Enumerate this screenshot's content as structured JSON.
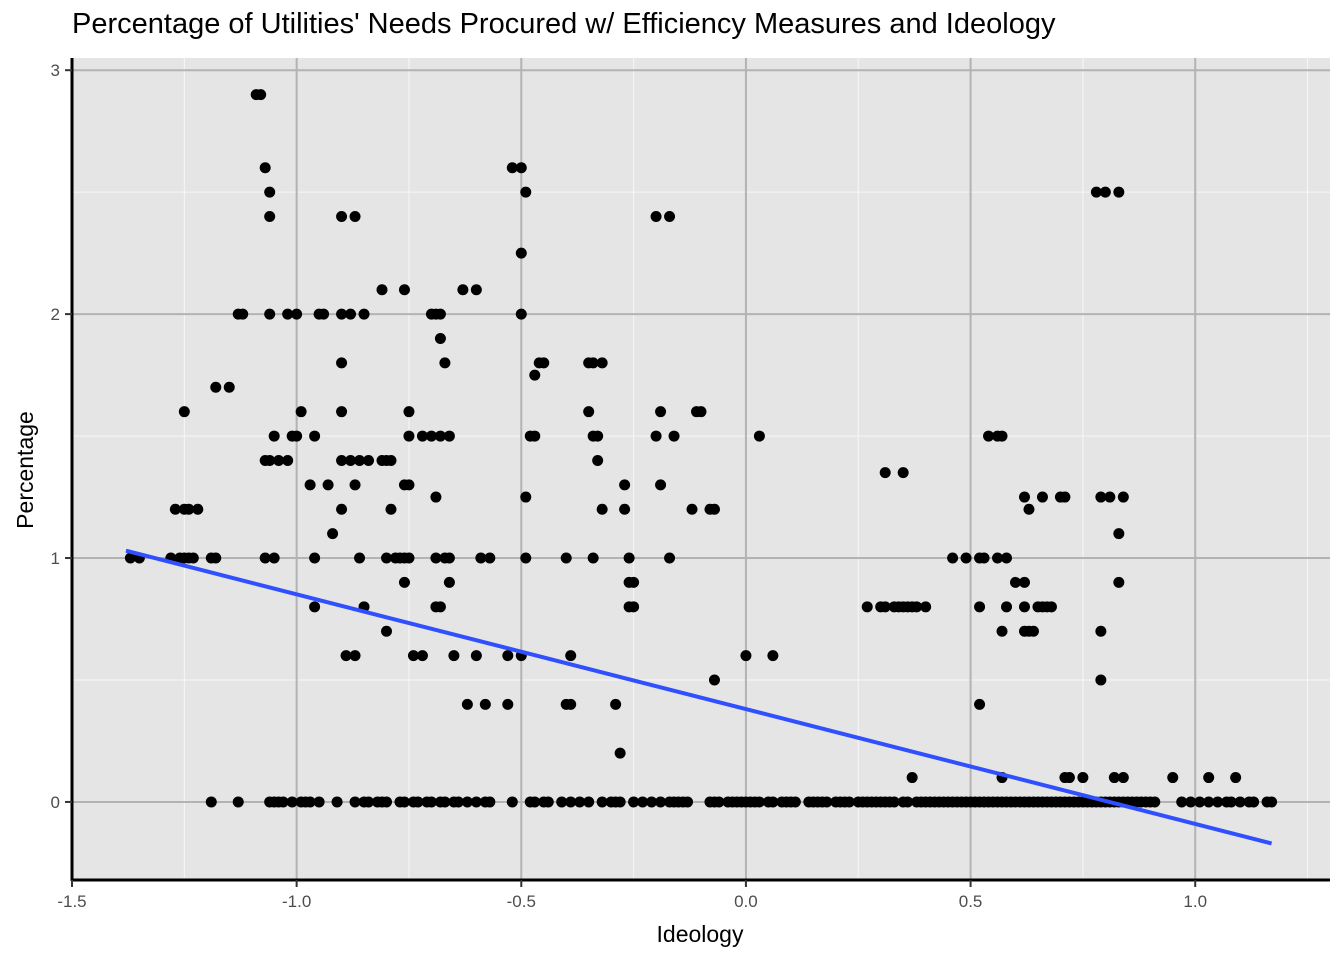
{
  "chart_data": {
    "type": "scatter",
    "title": "Percentage of Utilities' Needs Procured w/ Efficiency Measures and Ideology",
    "xlabel": "Ideology",
    "ylabel": "Percentage",
    "xlim": [
      -1.5,
      1.3
    ],
    "ylim": [
      -0.32,
      3.05
    ],
    "x_ticks": [
      -1.5,
      -1.0,
      -0.5,
      0.0,
      0.5,
      1.0
    ],
    "x_tick_labels": [
      "-1.5",
      "-1.0",
      "-0.5",
      "0.0",
      "0.5",
      "1.0"
    ],
    "y_ticks": [
      0,
      1,
      2,
      3
    ],
    "y_tick_labels": [
      "0",
      "1",
      "2",
      "3"
    ],
    "grid": true,
    "colors": {
      "panel": "#e5e5e5",
      "grid": "#b3b3b3",
      "points": "#000000",
      "trend": "#3050ff"
    },
    "trend_line": {
      "x": [
        -1.38,
        1.17
      ],
      "y": [
        1.03,
        -0.17
      ]
    },
    "points": [
      [
        -1.09,
        2.9
      ],
      [
        -1.08,
        2.9
      ],
      [
        -1.07,
        2.6
      ],
      [
        -1.06,
        2.5
      ],
      [
        -1.06,
        2.4
      ],
      [
        -0.52,
        2.6
      ],
      [
        -0.5,
        2.6
      ],
      [
        -0.49,
        2.5
      ],
      [
        -0.5,
        2.25
      ],
      [
        -0.9,
        2.4
      ],
      [
        -0.87,
        2.4
      ],
      [
        -0.2,
        2.4
      ],
      [
        -0.17,
        2.4
      ],
      [
        0.78,
        2.5
      ],
      [
        0.8,
        2.5
      ],
      [
        0.83,
        2.5
      ],
      [
        -1.13,
        2.0
      ],
      [
        -1.12,
        2.0
      ],
      [
        -1.06,
        2.0
      ],
      [
        -1.02,
        2.0
      ],
      [
        -1.0,
        2.0
      ],
      [
        -0.95,
        2.0
      ],
      [
        -0.94,
        2.0
      ],
      [
        -0.9,
        2.0
      ],
      [
        -0.88,
        2.0
      ],
      [
        -0.85,
        2.0
      ],
      [
        -0.7,
        2.0
      ],
      [
        -0.69,
        2.0
      ],
      [
        -0.68,
        2.0
      ],
      [
        -0.5,
        2.0
      ],
      [
        -0.81,
        2.1
      ],
      [
        -0.76,
        2.1
      ],
      [
        -0.63,
        2.1
      ],
      [
        -0.6,
        2.1
      ],
      [
        -0.68,
        1.9
      ],
      [
        -0.9,
        1.8
      ],
      [
        -0.67,
        1.8
      ],
      [
        -0.46,
        1.8
      ],
      [
        -0.45,
        1.8
      ],
      [
        -0.47,
        1.75
      ],
      [
        -0.35,
        1.8
      ],
      [
        -0.34,
        1.8
      ],
      [
        -0.32,
        1.8
      ],
      [
        -1.18,
        1.7
      ],
      [
        -1.15,
        1.7
      ],
      [
        -1.25,
        1.6
      ],
      [
        -0.99,
        1.6
      ],
      [
        -0.9,
        1.6
      ],
      [
        -0.75,
        1.6
      ],
      [
        -0.35,
        1.6
      ],
      [
        -0.19,
        1.6
      ],
      [
        -0.11,
        1.6
      ],
      [
        -0.1,
        1.6
      ],
      [
        -1.05,
        1.5
      ],
      [
        -1.01,
        1.5
      ],
      [
        -1.0,
        1.5
      ],
      [
        -0.96,
        1.5
      ],
      [
        -0.75,
        1.5
      ],
      [
        -0.72,
        1.5
      ],
      [
        -0.7,
        1.5
      ],
      [
        -0.68,
        1.5
      ],
      [
        -0.66,
        1.5
      ],
      [
        -0.48,
        1.5
      ],
      [
        -0.47,
        1.5
      ],
      [
        -0.34,
        1.5
      ],
      [
        -0.33,
        1.5
      ],
      [
        -0.2,
        1.5
      ],
      [
        -0.16,
        1.5
      ],
      [
        0.03,
        1.5
      ],
      [
        0.54,
        1.5
      ],
      [
        0.56,
        1.5
      ],
      [
        0.57,
        1.5
      ],
      [
        -1.07,
        1.4
      ],
      [
        -1.06,
        1.4
      ],
      [
        -1.04,
        1.4
      ],
      [
        -1.02,
        1.4
      ],
      [
        -0.9,
        1.4
      ],
      [
        -0.88,
        1.4
      ],
      [
        -0.86,
        1.4
      ],
      [
        -0.84,
        1.4
      ],
      [
        -0.81,
        1.4
      ],
      [
        -0.8,
        1.4
      ],
      [
        -0.79,
        1.4
      ],
      [
        -0.33,
        1.4
      ],
      [
        0.31,
        1.35
      ],
      [
        0.35,
        1.35
      ],
      [
        -0.97,
        1.3
      ],
      [
        -0.93,
        1.3
      ],
      [
        -0.87,
        1.3
      ],
      [
        -0.76,
        1.3
      ],
      [
        -0.75,
        1.3
      ],
      [
        -0.27,
        1.3
      ],
      [
        -0.19,
        1.3
      ],
      [
        -0.69,
        1.25
      ],
      [
        -0.49,
        1.25
      ],
      [
        0.62,
        1.25
      ],
      [
        0.66,
        1.25
      ],
      [
        0.7,
        1.25
      ],
      [
        0.71,
        1.25
      ],
      [
        0.79,
        1.25
      ],
      [
        0.81,
        1.25
      ],
      [
        0.84,
        1.25
      ],
      [
        -1.27,
        1.2
      ],
      [
        -1.25,
        1.2
      ],
      [
        -1.24,
        1.2
      ],
      [
        -1.22,
        1.2
      ],
      [
        -0.9,
        1.2
      ],
      [
        -0.79,
        1.2
      ],
      [
        -0.32,
        1.2
      ],
      [
        -0.27,
        1.2
      ],
      [
        -0.12,
        1.2
      ],
      [
        -0.08,
        1.2
      ],
      [
        -0.07,
        1.2
      ],
      [
        0.63,
        1.2
      ],
      [
        -0.92,
        1.1
      ],
      [
        0.83,
        1.1
      ],
      [
        -1.37,
        1.0
      ],
      [
        -1.35,
        1.0
      ],
      [
        -1.28,
        1.0
      ],
      [
        -1.26,
        1.0
      ],
      [
        -1.25,
        1.0
      ],
      [
        -1.24,
        1.0
      ],
      [
        -1.23,
        1.0
      ],
      [
        -1.19,
        1.0
      ],
      [
        -1.18,
        1.0
      ],
      [
        -1.07,
        1.0
      ],
      [
        -1.05,
        1.0
      ],
      [
        -0.96,
        1.0
      ],
      [
        -0.86,
        1.0
      ],
      [
        -0.8,
        1.0
      ],
      [
        -0.78,
        1.0
      ],
      [
        -0.77,
        1.0
      ],
      [
        -0.76,
        1.0
      ],
      [
        -0.75,
        1.0
      ],
      [
        -0.69,
        1.0
      ],
      [
        -0.67,
        1.0
      ],
      [
        -0.66,
        1.0
      ],
      [
        -0.59,
        1.0
      ],
      [
        -0.57,
        1.0
      ],
      [
        -0.49,
        1.0
      ],
      [
        -0.4,
        1.0
      ],
      [
        -0.34,
        1.0
      ],
      [
        -0.26,
        1.0
      ],
      [
        -0.17,
        1.0
      ],
      [
        0.46,
        1.0
      ],
      [
        0.49,
        1.0
      ],
      [
        0.52,
        1.0
      ],
      [
        0.53,
        1.0
      ],
      [
        0.56,
        1.0
      ],
      [
        0.58,
        1.0
      ],
      [
        -0.76,
        0.9
      ],
      [
        -0.66,
        0.9
      ],
      [
        -0.26,
        0.9
      ],
      [
        -0.25,
        0.9
      ],
      [
        0.6,
        0.9
      ],
      [
        0.62,
        0.9
      ],
      [
        0.83,
        0.9
      ],
      [
        -0.96,
        0.8
      ],
      [
        -0.85,
        0.8
      ],
      [
        -0.69,
        0.8
      ],
      [
        -0.68,
        0.8
      ],
      [
        -0.26,
        0.8
      ],
      [
        -0.25,
        0.8
      ],
      [
        0.27,
        0.8
      ],
      [
        0.3,
        0.8
      ],
      [
        0.31,
        0.8
      ],
      [
        0.33,
        0.8
      ],
      [
        0.34,
        0.8
      ],
      [
        0.35,
        0.8
      ],
      [
        0.36,
        0.8
      ],
      [
        0.37,
        0.8
      ],
      [
        0.38,
        0.8
      ],
      [
        0.4,
        0.8
      ],
      [
        0.52,
        0.8
      ],
      [
        0.58,
        0.8
      ],
      [
        0.62,
        0.8
      ],
      [
        0.65,
        0.8
      ],
      [
        0.66,
        0.8
      ],
      [
        0.67,
        0.8
      ],
      [
        0.68,
        0.8
      ],
      [
        -0.8,
        0.7
      ],
      [
        0.57,
        0.7
      ],
      [
        0.62,
        0.7
      ],
      [
        0.63,
        0.7
      ],
      [
        0.64,
        0.7
      ],
      [
        0.79,
        0.7
      ],
      [
        -0.89,
        0.6
      ],
      [
        -0.87,
        0.6
      ],
      [
        -0.74,
        0.6
      ],
      [
        -0.72,
        0.6
      ],
      [
        -0.65,
        0.6
      ],
      [
        -0.6,
        0.6
      ],
      [
        -0.53,
        0.6
      ],
      [
        -0.5,
        0.6
      ],
      [
        -0.39,
        0.6
      ],
      [
        0.0,
        0.6
      ],
      [
        0.06,
        0.6
      ],
      [
        -0.07,
        0.5
      ],
      [
        0.79,
        0.5
      ],
      [
        -0.62,
        0.4
      ],
      [
        -0.58,
        0.4
      ],
      [
        -0.53,
        0.4
      ],
      [
        -0.4,
        0.4
      ],
      [
        -0.39,
        0.4
      ],
      [
        -0.29,
        0.4
      ],
      [
        0.52,
        0.4
      ],
      [
        -0.28,
        0.2
      ],
      [
        0.37,
        0.1
      ],
      [
        0.57,
        0.1
      ],
      [
        0.71,
        0.1
      ],
      [
        0.72,
        0.1
      ],
      [
        0.75,
        0.1
      ],
      [
        0.82,
        0.1
      ],
      [
        0.84,
        0.1
      ],
      [
        0.95,
        0.1
      ],
      [
        1.03,
        0.1
      ],
      [
        1.09,
        0.1
      ],
      [
        -1.19,
        0
      ],
      [
        -1.13,
        0
      ],
      [
        -1.06,
        0
      ],
      [
        -1.05,
        0
      ],
      [
        -1.04,
        0
      ],
      [
        -1.03,
        0
      ],
      [
        -1.01,
        0
      ],
      [
        -0.99,
        0
      ],
      [
        -0.98,
        0
      ],
      [
        -0.97,
        0
      ],
      [
        -0.95,
        0
      ],
      [
        -0.91,
        0
      ],
      [
        -0.87,
        0
      ],
      [
        -0.85,
        0
      ],
      [
        -0.84,
        0
      ],
      [
        -0.82,
        0
      ],
      [
        -0.81,
        0
      ],
      [
        -0.8,
        0
      ],
      [
        -0.77,
        0
      ],
      [
        -0.76,
        0
      ],
      [
        -0.74,
        0
      ],
      [
        -0.73,
        0
      ],
      [
        -0.71,
        0
      ],
      [
        -0.7,
        0
      ],
      [
        -0.68,
        0
      ],
      [
        -0.67,
        0
      ],
      [
        -0.65,
        0
      ],
      [
        -0.64,
        0
      ],
      [
        -0.62,
        0
      ],
      [
        -0.6,
        0
      ],
      [
        -0.58,
        0
      ],
      [
        -0.57,
        0
      ],
      [
        -0.52,
        0
      ],
      [
        -0.48,
        0
      ],
      [
        -0.47,
        0
      ],
      [
        -0.45,
        0
      ],
      [
        -0.44,
        0
      ],
      [
        -0.41,
        0
      ],
      [
        -0.39,
        0
      ],
      [
        -0.37,
        0
      ],
      [
        -0.35,
        0
      ],
      [
        -0.32,
        0
      ],
      [
        -0.3,
        0
      ],
      [
        -0.29,
        0
      ],
      [
        -0.28,
        0
      ],
      [
        -0.25,
        0
      ],
      [
        -0.23,
        0
      ],
      [
        -0.21,
        0
      ],
      [
        -0.19,
        0
      ],
      [
        -0.17,
        0
      ],
      [
        -0.16,
        0
      ],
      [
        -0.15,
        0
      ],
      [
        -0.14,
        0
      ],
      [
        -0.13,
        0
      ],
      [
        -0.08,
        0
      ],
      [
        -0.07,
        0
      ],
      [
        -0.06,
        0
      ],
      [
        -0.04,
        0
      ],
      [
        -0.03,
        0
      ],
      [
        -0.02,
        0
      ],
      [
        -0.01,
        0
      ],
      [
        0.0,
        0
      ],
      [
        0.01,
        0
      ],
      [
        0.02,
        0
      ],
      [
        0.03,
        0
      ],
      [
        0.05,
        0
      ],
      [
        0.06,
        0
      ],
      [
        0.08,
        0
      ],
      [
        0.09,
        0
      ],
      [
        0.1,
        0
      ],
      [
        0.11,
        0
      ],
      [
        0.14,
        0
      ],
      [
        0.15,
        0
      ],
      [
        0.16,
        0
      ],
      [
        0.17,
        0
      ],
      [
        0.18,
        0
      ],
      [
        0.2,
        0
      ],
      [
        0.21,
        0
      ],
      [
        0.22,
        0
      ],
      [
        0.23,
        0
      ],
      [
        0.25,
        0
      ],
      [
        0.26,
        0
      ],
      [
        0.27,
        0
      ],
      [
        0.28,
        0
      ],
      [
        0.29,
        0
      ],
      [
        0.3,
        0
      ],
      [
        0.31,
        0
      ],
      [
        0.32,
        0
      ],
      [
        0.33,
        0
      ],
      [
        0.35,
        0
      ],
      [
        0.36,
        0
      ],
      [
        0.38,
        0
      ],
      [
        0.39,
        0
      ],
      [
        0.4,
        0
      ],
      [
        0.41,
        0
      ],
      [
        0.42,
        0
      ],
      [
        0.43,
        0
      ],
      [
        0.44,
        0
      ],
      [
        0.45,
        0
      ],
      [
        0.46,
        0
      ],
      [
        0.47,
        0
      ],
      [
        0.48,
        0
      ],
      [
        0.49,
        0
      ],
      [
        0.5,
        0
      ],
      [
        0.51,
        0
      ],
      [
        0.52,
        0
      ],
      [
        0.53,
        0
      ],
      [
        0.54,
        0
      ],
      [
        0.55,
        0
      ],
      [
        0.56,
        0
      ],
      [
        0.57,
        0
      ],
      [
        0.58,
        0
      ],
      [
        0.59,
        0
      ],
      [
        0.6,
        0
      ],
      [
        0.61,
        0
      ],
      [
        0.62,
        0
      ],
      [
        0.63,
        0
      ],
      [
        0.64,
        0
      ],
      [
        0.65,
        0
      ],
      [
        0.66,
        0
      ],
      [
        0.67,
        0
      ],
      [
        0.68,
        0
      ],
      [
        0.69,
        0
      ],
      [
        0.7,
        0
      ],
      [
        0.71,
        0
      ],
      [
        0.72,
        0
      ],
      [
        0.73,
        0
      ],
      [
        0.74,
        0
      ],
      [
        0.75,
        0
      ],
      [
        0.76,
        0
      ],
      [
        0.77,
        0
      ],
      [
        0.78,
        0
      ],
      [
        0.79,
        0
      ],
      [
        0.8,
        0
      ],
      [
        0.81,
        0
      ],
      [
        0.82,
        0
      ],
      [
        0.83,
        0
      ],
      [
        0.84,
        0
      ],
      [
        0.85,
        0
      ],
      [
        0.86,
        0
      ],
      [
        0.87,
        0
      ],
      [
        0.88,
        0
      ],
      [
        0.89,
        0
      ],
      [
        0.9,
        0
      ],
      [
        0.91,
        0
      ],
      [
        0.97,
        0
      ],
      [
        0.99,
        0
      ],
      [
        1.01,
        0
      ],
      [
        1.03,
        0
      ],
      [
        1.05,
        0
      ],
      [
        1.07,
        0
      ],
      [
        1.08,
        0
      ],
      [
        1.1,
        0
      ],
      [
        1.12,
        0
      ],
      [
        1.13,
        0
      ],
      [
        1.16,
        0
      ],
      [
        1.17,
        0
      ]
    ]
  }
}
